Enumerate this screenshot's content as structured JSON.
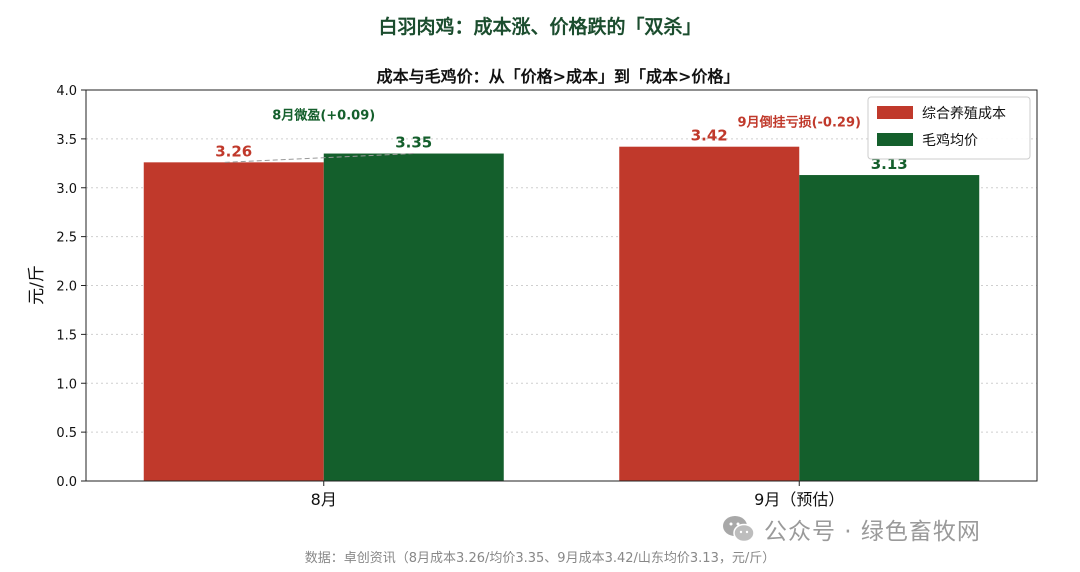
{
  "suptitle": "白羽肉鸡：成本涨、价格跌的「双杀」",
  "source": "数据：卓创资讯（8月成本3.26/均价3.35、9月成本3.42/山东均价3.13，元/斤）",
  "watermark": "公众号 · 绿色畜牧网",
  "colors": {
    "cost": "#c0392b",
    "price": "#145f2c",
    "title": "#1b4d2e"
  },
  "chart_data": {
    "type": "bar",
    "title": "成本与毛鸡价：从「价格>成本」到「成本>价格」",
    "ylabel": "元/斤",
    "xlabel": "",
    "categories": [
      "8月",
      "9月（预估）"
    ],
    "series": [
      {
        "name": "综合养殖成本",
        "values": [
          3.26,
          3.42
        ],
        "color": "#c0392b"
      },
      {
        "name": "毛鸡均价",
        "values": [
          3.35,
          3.13
        ],
        "color": "#145f2c"
      }
    ],
    "ylim": [
      0,
      4
    ],
    "yticks": [
      "0.0",
      "0.5",
      "1.0",
      "1.5",
      "2.0",
      "2.5",
      "3.0",
      "3.5",
      "4.0"
    ],
    "value_labels": [
      "3.26",
      "3.42",
      "3.35",
      "3.13"
    ],
    "annotations": [
      {
        "text": "8月微盈(+0.09)",
        "color": "#145f2c"
      },
      {
        "text": "9月倒挂亏损(-0.29)",
        "color": "#c0392b"
      }
    ],
    "grid": "y-dotted",
    "legend": "top-right"
  }
}
